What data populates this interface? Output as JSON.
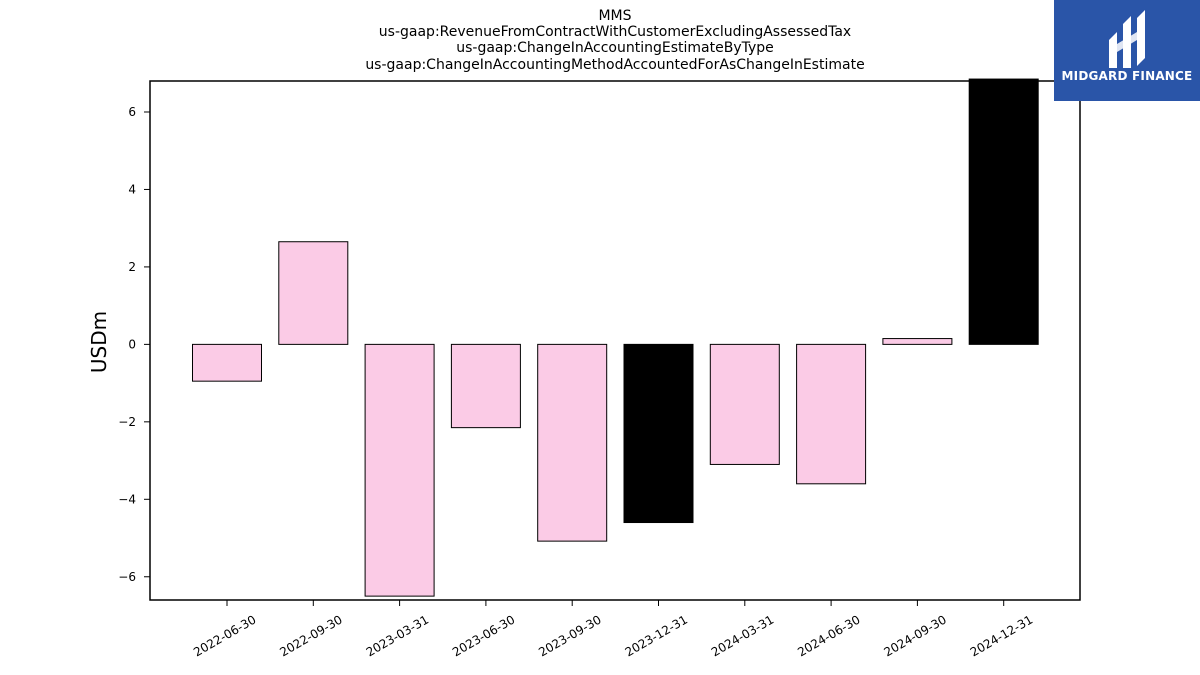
{
  "chart_data": {
    "type": "bar",
    "title": "MMS",
    "subtitle_lines": [
      "us-gaap:RevenueFromContractWithCustomerExcludingAssessedTax",
      "us-gaap:ChangeInAccountingEstimateByType",
      "us-gaap:ChangeInAccountingMethodAccountedForAsChangeInEstimate"
    ],
    "ylabel": "USDm",
    "xlabel": "",
    "categories": [
      "2022-06-30",
      "2022-09-30",
      "2023-03-31",
      "2023-06-30",
      "2023-09-30",
      "2023-12-31",
      "2024-03-31",
      "2024-06-30",
      "2024-09-30",
      "2024-12-31"
    ],
    "values": [
      -0.95,
      2.65,
      -6.5,
      -2.15,
      -5.08,
      -4.6,
      -3.1,
      -3.6,
      0.15,
      6.85
    ],
    "highlighted": [
      false,
      false,
      false,
      false,
      false,
      true,
      false,
      false,
      false,
      true
    ],
    "ylim": [
      -6.6,
      6.8
    ],
    "yticks": [
      -6,
      -4,
      -2,
      0,
      2,
      4,
      6
    ],
    "ytick_labels": [
      "−6",
      "−4",
      "−2",
      "0",
      "2",
      "4",
      "6"
    ],
    "grid": false,
    "colors": {
      "bar": "#fbcbe6",
      "highlight": "#000000",
      "edge": "#000000"
    }
  },
  "logo": {
    "text": "MIDGARD FINANCE",
    "background": "#2a55a8"
  }
}
